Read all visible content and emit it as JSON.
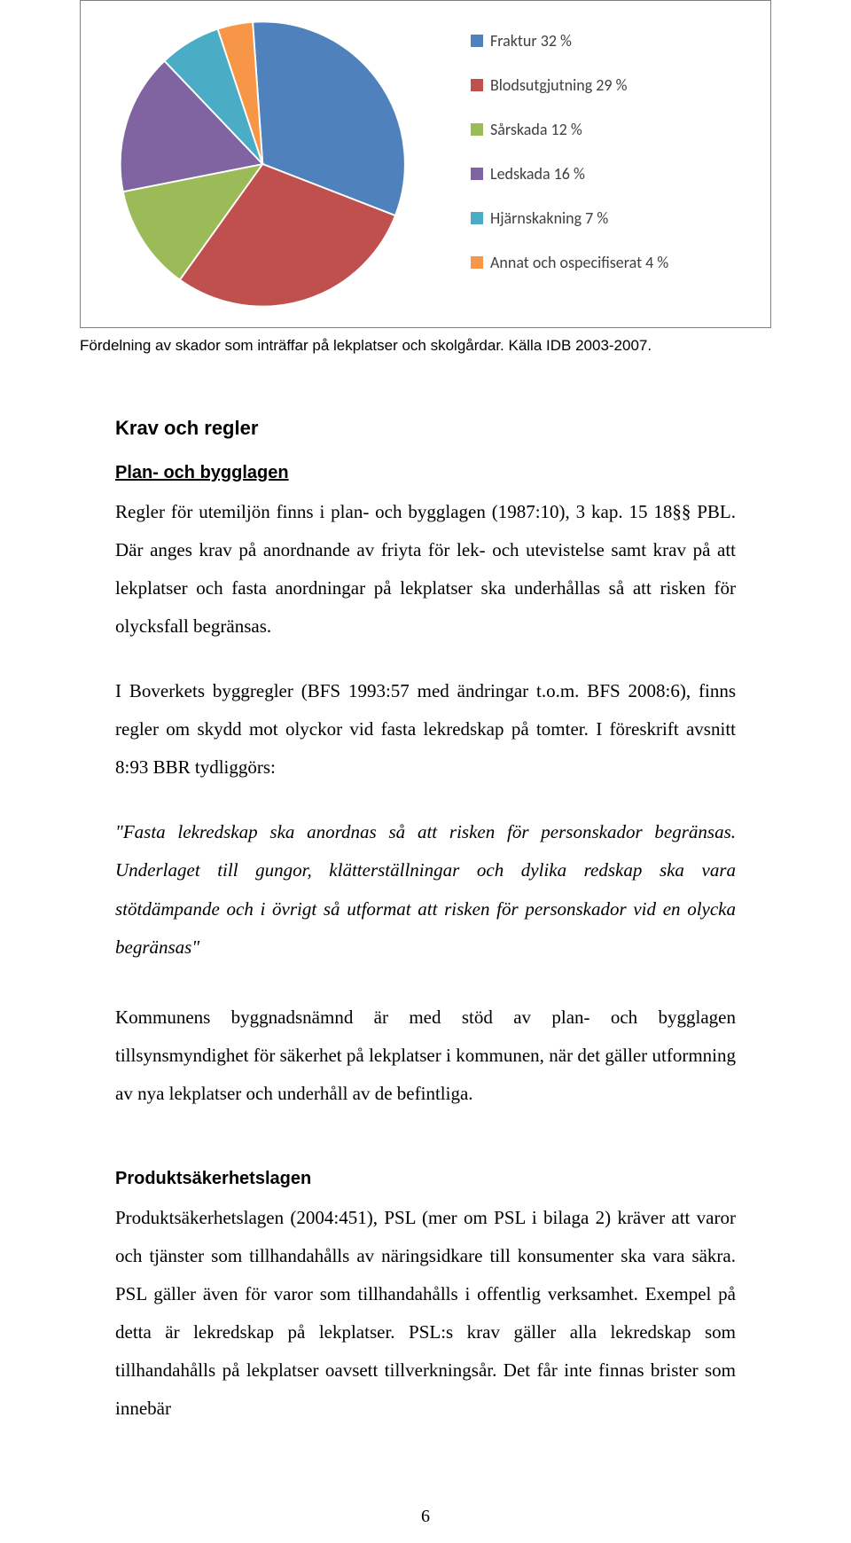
{
  "chart": {
    "type": "pie",
    "background_color": "#ffffff",
    "border_color": "#808080",
    "slices": [
      {
        "label": "Fraktur 32 %",
        "value": 32,
        "color": "#4f81bd"
      },
      {
        "label": "Blodsutgjutning 29 %",
        "value": 29,
        "color": "#c0504d"
      },
      {
        "label": "Sårskada 12 %",
        "value": 12,
        "color": "#9bbb59"
      },
      {
        "label": "Ledskada 16 %",
        "value": 16,
        "color": "#8064a2"
      },
      {
        "label": "Hjärnskakning 7 %",
        "value": 7,
        "color": "#4bacc6"
      },
      {
        "label": "Annat och ospecifiserat 4 %",
        "value": 4,
        "color": "#f79646"
      }
    ],
    "legend_font_family": "Calibri",
    "legend_font_size": 18,
    "legend_color": "#404040",
    "start_angle_deg": -94
  },
  "caption": "Fördelning av skador som inträffar på lekplatser och skolgårdar. Källa IDB 2003-2007.",
  "section1_title": "Krav och regler",
  "section1_sub": "Plan- och bygglagen",
  "p1": "Regler för utemiljön finns i plan- och bygglagen (1987:10), 3 kap. 15 18§§ PBL. Där anges krav på anordnande av friyta för lek- och utevistelse samt krav på att lekplatser och fasta anordningar på lekplatser ska underhållas så att risken för olycksfall begränsas.",
  "p2": "I Boverkets byggregler (BFS 1993:57 med ändringar t.o.m. BFS 2008:6), finns regler om skydd mot olyckor vid fasta lekredskap på tomter. I föreskrift avsnitt 8:93 BBR tydliggörs:",
  "quote1": "\"Fasta lekredskap ska anordnas så att risken för personskador begränsas. Underlaget till gungor, klätterställningar och dylika redskap ska vara stötdämpande och i övrigt så utformat att risken för personskador vid en olycka begränsas\"",
  "p3": "Kommunens byggnadsnämnd är med stöd av plan- och bygglagen tillsynsmyndighet för säkerhet på lekplatser i kommunen, när det gäller utformning av nya lekplatser och underhåll av de befintliga.",
  "section2_sub": "Produktsäkerhetslagen",
  "p4": "Produktsäkerhetslagen (2004:451), PSL (mer om PSL i bilaga 2) kräver att varor och tjänster som tillhandahålls av näringsidkare till konsumenter ska vara säkra. PSL gäller även för varor som tillhandahålls i offentlig verksamhet. Exempel på detta är lekredskap på lekplatser. PSL:s krav gäller alla lekredskap som tillhandahålls på lekplatser oavsett tillverkningsår. Det får inte finnas brister som innebär",
  "page_number": "6"
}
